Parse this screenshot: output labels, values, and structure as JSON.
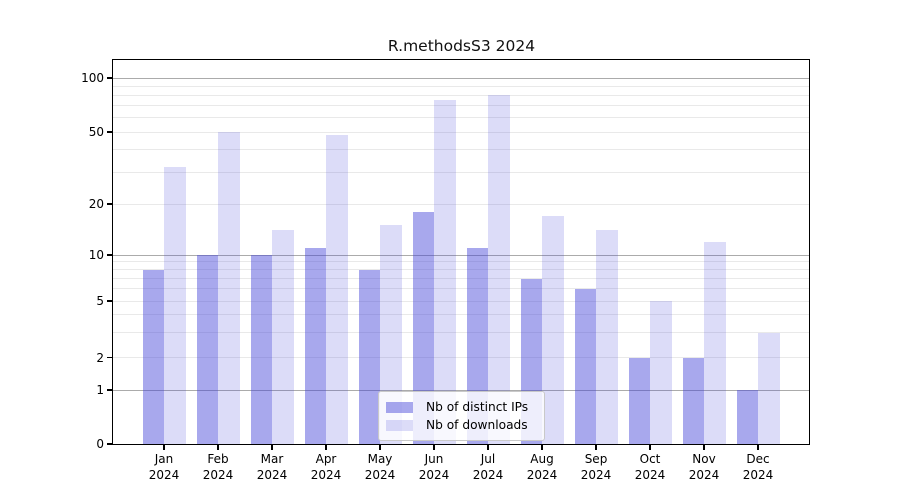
{
  "title": "R.methodsS3 2024",
  "chart_data": {
    "type": "bar",
    "title": "R.methodsS3 2024",
    "categories": [
      "Jan",
      "Feb",
      "Mar",
      "Apr",
      "May",
      "Jun",
      "Jul",
      "Aug",
      "Sep",
      "Oct",
      "Nov",
      "Dec"
    ],
    "x_sublabel_year": "2024",
    "series": [
      {
        "name": "Nb of distinct IPs",
        "color": "#a8a8e9",
        "values": [
          8,
          10,
          10,
          11,
          8,
          18,
          11,
          7,
          6,
          2,
          2,
          1
        ]
      },
      {
        "name": "Nb of downloads",
        "color": "#dcdcf8",
        "values": [
          32,
          50,
          14,
          48,
          15,
          75,
          80,
          17,
          14,
          5,
          12,
          3
        ]
      }
    ],
    "y_ticks": [
      100,
      50,
      20,
      10,
      5,
      2,
      1,
      0
    ],
    "y_minor_gridlines": [
      2,
      3,
      4,
      5,
      6,
      7,
      8,
      9,
      20,
      30,
      40,
      50,
      60,
      70,
      80,
      90
    ],
    "y_major_gridlines": [
      1,
      10,
      100
    ],
    "y_scale": "symlog",
    "ylim": [
      0,
      126
    ],
    "xlabel": "",
    "ylabel": "",
    "grid": "horizontal",
    "legend_position": "lower center"
  },
  "legend": {
    "items": [
      "Nb of distinct IPs",
      "Nb of downloads"
    ]
  },
  "colors": {
    "bar_distinct_ips": "#a8a8e9",
    "bar_downloads": "#dcdcf8",
    "grid_minor": "#e9e9e9",
    "grid_major": "#ababab",
    "axis": "#000000",
    "background": "#ffffff"
  }
}
